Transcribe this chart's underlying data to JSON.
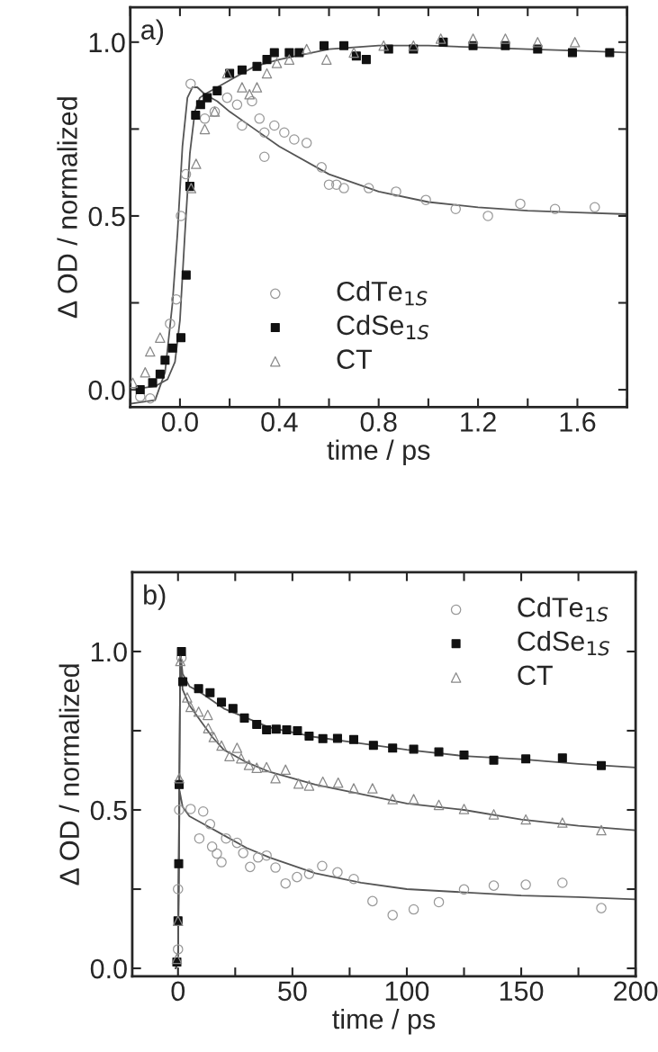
{
  "chart_data": [
    {
      "type": "scatter",
      "xlabel": "time / ps",
      "ylabel": "Δ OD / normalized",
      "annotations": [
        "a)"
      ],
      "xlim": [
        -0.2,
        1.8
      ],
      "xticks": [
        {
          "value": -0.2,
          "label": null
        },
        {
          "value": 0,
          "label": "0.0"
        },
        {
          "value": 0.2,
          "label": null
        },
        0.4,
        {
          "value": 0.6,
          "label": null
        },
        0.8,
        {
          "value": 1.0,
          "label": null
        },
        1.2,
        {
          "value": 1.4,
          "label": null
        },
        1.6,
        {
          "value": 1.8,
          "label": null
        }
      ],
      "ylim": [
        -0.05,
        1.1
      ],
      "yticks": [
        {
          "value": 0,
          "label": "0.0"
        },
        {
          "value": 0.25,
          "label": null
        },
        0.5,
        {
          "value": 0.75,
          "label": null
        },
        {
          "value": 1,
          "label": "1.0"
        }
      ],
      "legend": "lower center",
      "grid": false,
      "series": [
        {
          "name": "CdTe$_{1S}$",
          "color": "#999999",
          "marker": "circle",
          "x": [
            -0.16,
            -0.12,
            -0.04,
            -0.015,
            0.004,
            0.024,
            0.043,
            0.1,
            0.14,
            0.19,
            0.23,
            0.25,
            0.29,
            0.32,
            0.34,
            0.34,
            0.38,
            0.42,
            0.46,
            0.51,
            0.57,
            0.6,
            0.63,
            0.66,
            0.76,
            0.87,
            0.99,
            1.11,
            1.24,
            1.37,
            1.51,
            1.67
          ],
          "values": [
            -0.02,
            -0.025,
            0.19,
            0.26,
            0.5,
            0.62,
            0.88,
            0.78,
            0.8,
            0.84,
            0.82,
            0.76,
            0.83,
            0.78,
            0.74,
            0.67,
            0.76,
            0.74,
            0.72,
            0.71,
            0.64,
            0.59,
            0.59,
            0.58,
            0.58,
            0.57,
            0.546,
            0.52,
            0.5,
            0.535,
            0.52,
            0.525
          ]
        },
        {
          "name": "CdSe$_{1S}$",
          "color": "#111111",
          "marker": "square",
          "x": [
            -0.16,
            -0.11,
            -0.08,
            -0.06,
            -0.03,
            0.004,
            0.025,
            0.04,
            0.063,
            0.083,
            0.11,
            0.15,
            0.2,
            0.25,
            0.31,
            0.35,
            0.38,
            0.44,
            0.48,
            0.58,
            0.66,
            0.71,
            0.75,
            0.84,
            0.94,
            1.06,
            1.18,
            1.31,
            1.44,
            1.58,
            1.73
          ],
          "values": [
            0.0,
            0.02,
            0.045,
            0.085,
            0.12,
            0.15,
            0.33,
            0.585,
            0.79,
            0.82,
            0.84,
            0.86,
            0.91,
            0.92,
            0.93,
            0.95,
            0.97,
            0.97,
            0.97,
            0.99,
            0.99,
            0.96,
            0.95,
            0.98,
            0.98,
            1.0,
            0.99,
            0.99,
            0.98,
            0.97,
            0.97
          ]
        },
        {
          "name": "CT",
          "color": "#888888",
          "marker": "triangle",
          "x": [
            -0.19,
            -0.14,
            -0.12,
            -0.08,
            0.045,
            0.065,
            0.1,
            0.14,
            0.19,
            0.25,
            0.28,
            0.31,
            0.35,
            0.39,
            0.44,
            0.51,
            0.59,
            0.7,
            0.82,
            0.94,
            1.05,
            1.18,
            1.31,
            1.44,
            1.59
          ],
          "values": [
            0.02,
            0.05,
            0.11,
            0.15,
            0.58,
            0.65,
            0.75,
            0.8,
            0.91,
            0.87,
            0.85,
            0.87,
            0.91,
            0.94,
            0.95,
            0.98,
            0.95,
            0.97,
            0.99,
            0.99,
            1.01,
            1.01,
            1.01,
            1.0,
            1.0
          ]
        },
        {
          "type": "line",
          "color": "#555555",
          "x": [
            -0.2,
            -0.1,
            -0.06,
            -0.03,
            -0.01,
            0.01,
            0.03,
            0.05,
            0.07,
            0.1,
            0.15,
            0.2,
            0.3,
            0.4,
            0.6,
            0.8,
            1.0,
            1.2,
            1.4,
            1.6,
            1.8
          ],
          "values": [
            -0.04,
            -0.03,
            0.05,
            0.25,
            0.45,
            0.7,
            0.84,
            0.87,
            0.87,
            0.85,
            0.83,
            0.8,
            0.75,
            0.7,
            0.62,
            0.57,
            0.54,
            0.525,
            0.515,
            0.51,
            0.505
          ]
        },
        {
          "type": "line",
          "color": "#555555",
          "x": [
            -0.2,
            -0.1,
            -0.05,
            -0.02,
            0.0,
            0.02,
            0.04,
            0.06,
            0.08,
            0.1,
            0.15,
            0.2,
            0.3,
            0.4,
            0.6,
            0.8,
            1.0,
            1.2,
            1.4,
            1.6,
            1.8
          ],
          "values": [
            0.0,
            0.01,
            0.03,
            0.08,
            0.2,
            0.45,
            0.68,
            0.8,
            0.84,
            0.85,
            0.87,
            0.89,
            0.93,
            0.95,
            0.98,
            0.99,
            0.99,
            0.985,
            0.98,
            0.975,
            0.97
          ]
        }
      ]
    },
    {
      "type": "scatter",
      "xlabel": "time / ps",
      "ylabel": "Δ OD / normalized",
      "annotations": [
        "b)"
      ],
      "xlim": [
        -20,
        200
      ],
      "xticks": [
        0,
        {
          "value": 25,
          "label": null
        },
        50,
        {
          "value": 75,
          "label": null
        },
        100,
        {
          "value": 125,
          "label": null
        },
        150,
        {
          "value": 175,
          "label": null
        },
        200
      ],
      "ylim": [
        -0.025,
        1.25
      ],
      "yticks": [
        {
          "value": 0,
          "label": "0.0"
        },
        {
          "value": 0.25,
          "label": null
        },
        0.5,
        {
          "value": 0.75,
          "label": null
        },
        {
          "value": 1,
          "label": "1.0"
        }
      ],
      "legend": "top right",
      "grid": false,
      "series": [
        {
          "name": "CdTe$_{1S}$",
          "color": "#999999",
          "marker": "circle",
          "x": [
            0,
            0,
            0.5,
            1.5,
            5.5,
            11,
            14,
            9.3,
            14.9,
            17,
            19,
            21,
            25.8,
            28.5,
            31.5,
            35,
            38.7,
            42.6,
            47,
            52,
            57.3,
            63,
            69.7,
            76.8,
            85,
            93.8,
            103,
            114,
            125,
            138,
            152,
            168,
            185
          ],
          "values": [
            0.06,
            0.25,
            0.5,
            0.98,
            0.503,
            0.495,
            0.455,
            0.41,
            0.384,
            0.362,
            0.335,
            0.41,
            0.396,
            0.364,
            0.32,
            0.35,
            0.356,
            0.318,
            0.268,
            0.288,
            0.298,
            0.323,
            0.303,
            0.282,
            0.212,
            0.168,
            0.186,
            0.209,
            0.249,
            0.261,
            0.264,
            0.27,
            0.19
          ]
        },
        {
          "name": "CdSe$_{1S}$",
          "color": "#111111",
          "marker": "square",
          "x": [
            -0.5,
            0,
            0.3,
            0.5,
            1.5,
            2.1,
            9,
            14,
            19,
            24,
            29,
            34.4,
            38.7,
            42.9,
            47.5,
            52.2,
            57.3,
            63.3,
            69.7,
            76.8,
            85.4,
            93.8,
            103,
            114,
            125,
            138,
            152,
            168,
            185
          ],
          "values": [
            0.02,
            0.15,
            0.33,
            0.58,
            1.0,
            0.905,
            0.883,
            0.87,
            0.84,
            0.82,
            0.79,
            0.77,
            0.753,
            0.755,
            0.753,
            0.75,
            0.733,
            0.725,
            0.726,
            0.722,
            0.704,
            0.695,
            0.692,
            0.683,
            0.673,
            0.657,
            0.661,
            0.664,
            0.64
          ]
        },
        {
          "name": "CT",
          "color": "#888888",
          "marker": "triangle",
          "x": [
            -0.5,
            0,
            0.5,
            1,
            4,
            5.5,
            9,
            13,
            13.2,
            15.6,
            19,
            25.8,
            22.5,
            27.6,
            31,
            34.4,
            38.7,
            42.6,
            47,
            52.7,
            57.3,
            63.3,
            70,
            76.8,
            85,
            93.8,
            103,
            114,
            125,
            138,
            152,
            168,
            185
          ],
          "values": [
            0.03,
            0.15,
            0.6,
            0.97,
            0.855,
            0.825,
            0.81,
            0.8,
            0.758,
            0.73,
            0.703,
            0.696,
            0.67,
            0.663,
            0.642,
            0.633,
            0.635,
            0.6,
            0.627,
            0.583,
            0.577,
            0.589,
            0.586,
            0.568,
            0.568,
            0.534,
            0.534,
            0.516,
            0.503,
            0.486,
            0.47,
            0.46,
            0.436
          ]
        },
        {
          "type": "line",
          "color": "#555555",
          "x": [
            -1,
            0,
            0.7,
            2,
            5,
            10,
            20,
            30,
            40,
            60,
            80,
            100,
            125,
            150,
            175,
            200
          ],
          "values": [
            0.0,
            0.02,
            0.56,
            0.51,
            0.48,
            0.46,
            0.42,
            0.38,
            0.35,
            0.3,
            0.27,
            0.25,
            0.24,
            0.23,
            0.225,
            0.218
          ]
        },
        {
          "type": "line",
          "color": "#555555",
          "x": [
            -1,
            0,
            1,
            2,
            5,
            10,
            20,
            30,
            40,
            60,
            80,
            100,
            125,
            150,
            175,
            200
          ],
          "values": [
            0.0,
            0.02,
            1.0,
            0.93,
            0.89,
            0.87,
            0.82,
            0.79,
            0.76,
            0.73,
            0.71,
            0.69,
            0.67,
            0.66,
            0.645,
            0.634
          ]
        },
        {
          "type": "line",
          "color": "#555555",
          "x": [
            -1,
            0,
            1,
            2,
            5,
            10,
            15,
            20,
            30,
            40,
            60,
            80,
            100,
            125,
            150,
            175,
            200
          ],
          "values": [
            0.0,
            0.02,
            1.0,
            0.88,
            0.83,
            0.78,
            0.73,
            0.69,
            0.65,
            0.62,
            0.58,
            0.55,
            0.52,
            0.5,
            0.47,
            0.45,
            0.436
          ]
        }
      ]
    }
  ]
}
